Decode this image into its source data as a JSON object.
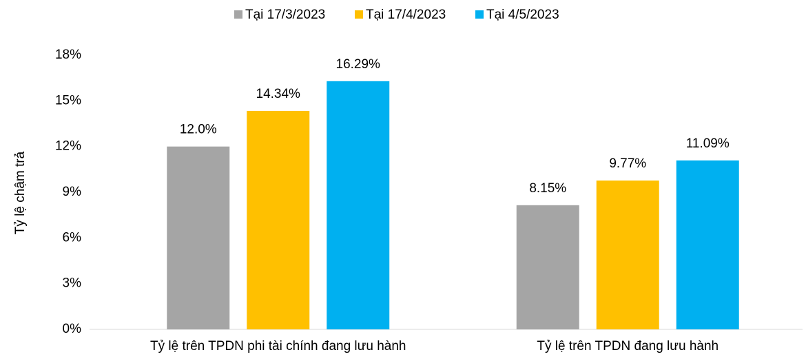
{
  "chart_data": {
    "type": "bar",
    "y_label": "Tỷ lệ chậm trả",
    "categories": [
      "Tỷ lệ trên TPDN phi tài chính đang lưu hành",
      "Tỷ lệ trên TPDN đang lưu hành"
    ],
    "series": [
      {
        "name": "Tại 17/3/2023",
        "color": "#a5a5a5",
        "values": [
          12.0,
          8.15
        ],
        "value_labels": [
          "12.0%",
          "8.15%"
        ]
      },
      {
        "name": "Tại 17/4/2023",
        "color": "#ffc000",
        "values": [
          14.34,
          9.77
        ],
        "value_labels": [
          "14.34%",
          "9.77%"
        ]
      },
      {
        "name": "Tại 4/5/2023",
        "color": "#00b0f0",
        "values": [
          16.29,
          11.09
        ],
        "value_labels": [
          "16.29%",
          "11.09%"
        ]
      }
    ],
    "ylim": [
      0,
      18
    ],
    "yticks": [
      {
        "value": 0,
        "label": "0%"
      },
      {
        "value": 3,
        "label": "3%"
      },
      {
        "value": 6,
        "label": "6%"
      },
      {
        "value": 9,
        "label": "9%"
      },
      {
        "value": 12,
        "label": "12%"
      },
      {
        "value": 15,
        "label": "15%"
      },
      {
        "value": 18,
        "label": "18%"
      }
    ],
    "legend": "top",
    "grid": false
  }
}
